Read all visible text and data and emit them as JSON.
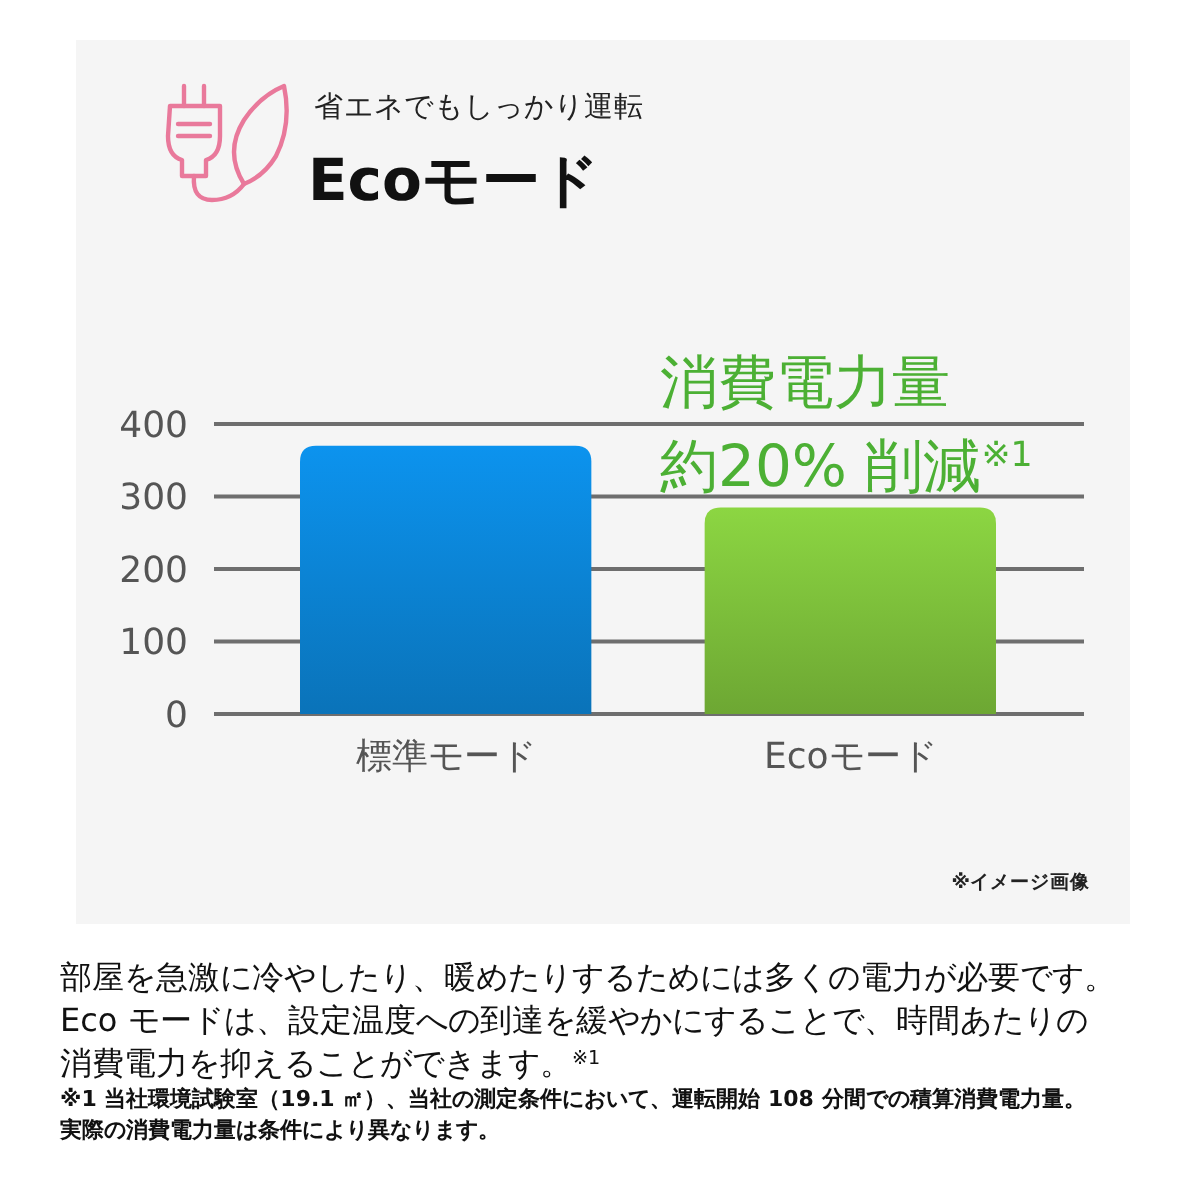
{
  "chart_data": {
    "type": "bar",
    "title": "Ecoモード",
    "subtitle": "省エネでもしっかり運転",
    "categories": [
      "標準モード",
      "Ecoモード"
    ],
    "values": [
      370,
      285
    ],
    "colors": [
      "#0b82d2",
      "#7cbd3a"
    ],
    "ylim": [
      0,
      400
    ],
    "yticks": [
      0,
      100,
      200,
      300,
      400
    ],
    "grid": "y",
    "annotations": [
      "消費電力量約20% 削減$^{※1}$",
      "※イメージ画像",
      "部屋を急激に冷やしたり、暖めたりするためには多くの電力が必要です。Eco モードは、設定温度への到達を緩やかにすることで、時間あたりの消費電力を抑えることができます。$^{※1}$",
      "※1 当社環境試験室（19.1 ㎡）、当社の測定条件において、運転開始 108 分間での積算消費電力量。実際の消費電力量は条件により異なります。"
    ]
  }
}
